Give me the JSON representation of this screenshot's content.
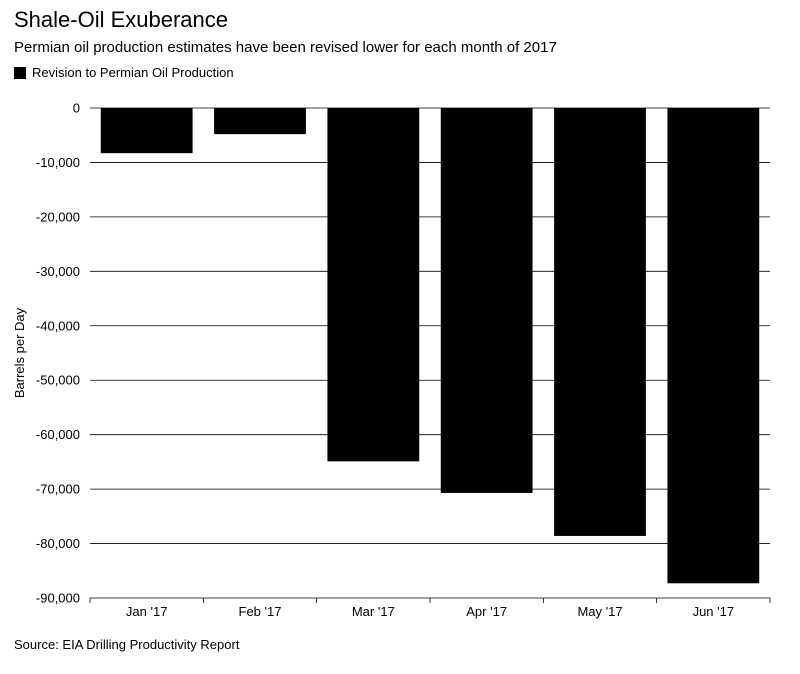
{
  "title": "Shale-Oil Exuberance",
  "subtitle": "Permian oil production estimates have been revised lower for each month of 2017",
  "source": "Source: EIA Drilling Productivity Report",
  "colors": {
    "bar": "#000000",
    "grid": "#000000",
    "background": "#ffffff"
  },
  "chart_data": {
    "type": "bar",
    "title": "Shale-Oil Exuberance",
    "subtitle": "Permian oil production estimates have been revised lower for each month of 2017",
    "xlabel": "",
    "ylabel": "Barrels per Day",
    "categories": [
      "Jan '17",
      "Feb '17",
      "Mar '17",
      "Apr '17",
      "May '17",
      "Jun '17"
    ],
    "series": [
      {
        "name": "Revision to Permian Oil Production",
        "values": [
          -8300,
          -4800,
          -64900,
          -70700,
          -78600,
          -87300
        ]
      }
    ],
    "ylim": [
      -90000,
      0
    ],
    "yticks": [
      0,
      -10000,
      -20000,
      -30000,
      -40000,
      -50000,
      -60000,
      -70000,
      -80000,
      -90000
    ],
    "ytick_labels": [
      "0",
      "-10,000",
      "-20,000",
      "-30,000",
      "-40,000",
      "-50,000",
      "-60,000",
      "-70,000",
      "-80,000",
      "-90,000"
    ],
    "grid": true,
    "legend_position": "top-left"
  }
}
